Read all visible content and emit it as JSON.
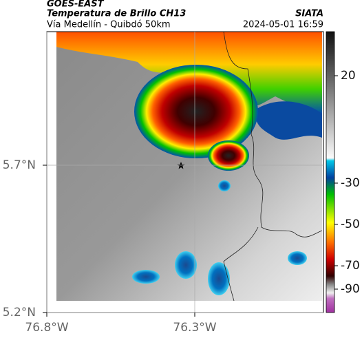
{
  "header": {
    "source": "GOES-EAST",
    "title": "Temperatura de Brillo CH13",
    "subtitle": "Vía Medellín - Quibdó 50km",
    "agency": "SIATA",
    "timestamp": "2024-05-01 16:59"
  },
  "map": {
    "lat_ticks": [
      {
        "value": 5.7,
        "label": "5.7°N"
      },
      {
        "value": 5.2,
        "label": "5.2°N"
      }
    ],
    "lon_ticks": [
      {
        "value": -76.8,
        "label": "76.8°W"
      },
      {
        "value": -76.3,
        "label": "76.3°W"
      }
    ],
    "colorbar_ticks": [
      20,
      -30,
      -50,
      -70,
      -90
    ]
  }
}
